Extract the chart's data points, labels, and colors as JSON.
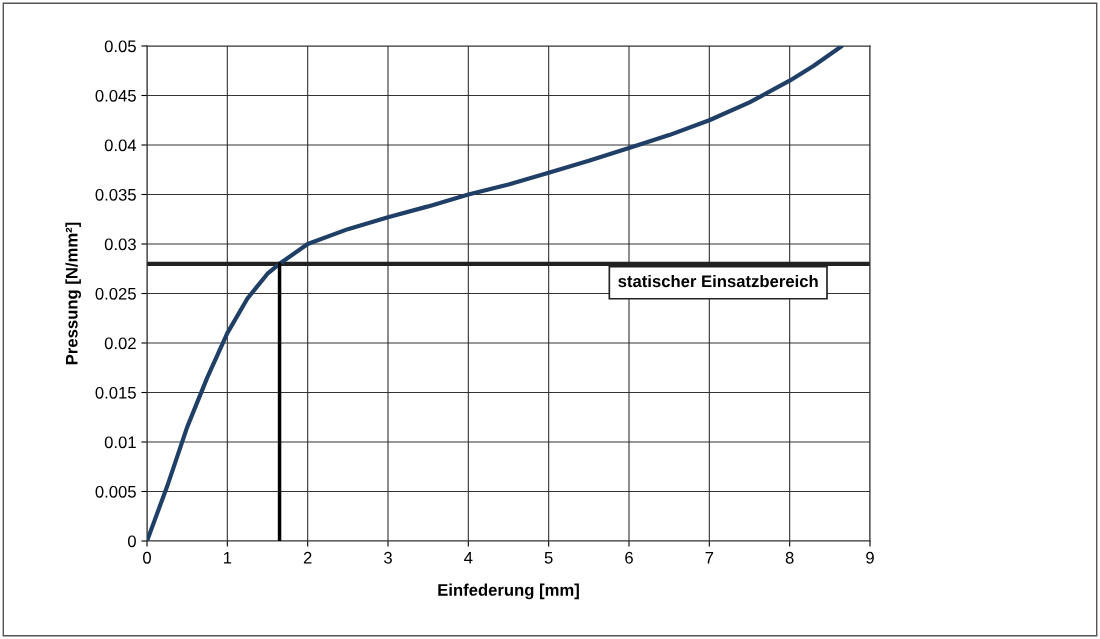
{
  "chart_data": {
    "type": "line",
    "xlabel": "Einfederung [mm]",
    "ylabel": "Pressung [N/mm²]",
    "series": [
      {
        "color": "#1f3f66",
        "x": [
          0,
          0.25,
          0.5,
          0.75,
          1,
          1.25,
          1.5,
          1.65,
          2,
          2.5,
          3,
          3.5,
          4,
          4.5,
          5,
          5.5,
          6,
          6.5,
          7,
          7.5,
          8,
          8.3,
          8.65
        ],
        "values": [
          0,
          0.0055,
          0.0115,
          0.0165,
          0.021,
          0.0245,
          0.027,
          0.028,
          0.03,
          0.0315,
          0.0327,
          0.0338,
          0.035,
          0.036,
          0.0372,
          0.0384,
          0.0397,
          0.041,
          0.0425,
          0.0443,
          0.0465,
          0.048,
          0.05
        ]
      },
      {
        "color": "#000000",
        "x": [
          1.65,
          1.65
        ],
        "values": [
          0,
          0.028
        ]
      }
    ],
    "ref_lines": [
      {
        "axis": "y",
        "value": 0.028,
        "label": "statischer Einsatzbereich",
        "color": "#222222"
      }
    ],
    "xlim": [
      0,
      9
    ],
    "xticks": [
      0,
      1,
      2,
      3,
      4,
      5,
      6,
      7,
      8,
      9
    ],
    "ylim": [
      0,
      0.05
    ],
    "yticks": [
      0,
      0.005,
      0.01,
      0.015,
      0.02,
      0.025,
      0.03,
      0.035,
      0.04,
      0.045,
      0.05
    ],
    "grid": true,
    "marker": "none",
    "line_style": "solid"
  }
}
